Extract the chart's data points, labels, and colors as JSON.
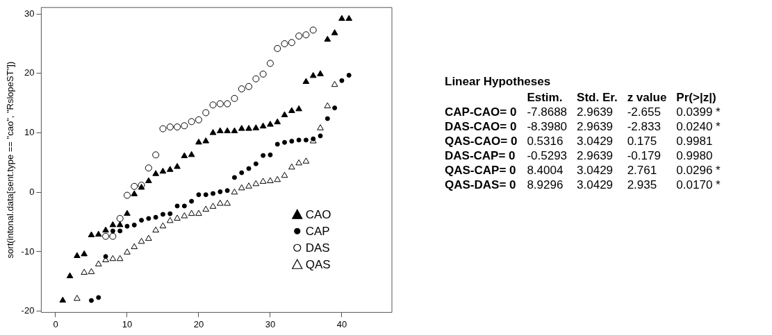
{
  "chart_data": [
    {
      "type": "scatter",
      "ylabel": "sort(intonal.data[sent.type == \"cao\", \"RslopeST\"])",
      "xlim": [
        -2,
        47
      ],
      "ylim": [
        -20.2,
        31.1
      ],
      "xticks": [
        0,
        10,
        20,
        30,
        40
      ],
      "yticks": [
        -20,
        -10,
        0,
        10,
        20,
        30
      ],
      "grid": false,
      "legend": "bottom right",
      "series": [
        {
          "name": "CAO",
          "color": "#000000",
          "marker": "triangle",
          "x": [
            1,
            2,
            3,
            4,
            5,
            6,
            7,
            8,
            9,
            10,
            11,
            12,
            13,
            14,
            15,
            16,
            17,
            18,
            19,
            20,
            21,
            22,
            23,
            24,
            25,
            26,
            27,
            28,
            29,
            30,
            31,
            32,
            33,
            34,
            35,
            36,
            37,
            38,
            39,
            40,
            41
          ],
          "values": [
            -18.2,
            -14.1,
            -10.7,
            -10.4,
            -7.2,
            -7.1,
            -6.4,
            -5.5,
            -5.5,
            -3.6,
            -0.3,
            0.8,
            1.9,
            3.1,
            3.5,
            3.8,
            4.3,
            6.1,
            6.3,
            8.4,
            8.6,
            10.0,
            10.3,
            10.3,
            10.3,
            10.7,
            10.7,
            10.8,
            11.1,
            11.4,
            11.8,
            13.0,
            13.7,
            14.0,
            18.6,
            19.6,
            19.9,
            25.7,
            26.8,
            29.2,
            29.2
          ]
        },
        {
          "name": "CAP",
          "color": "#000000",
          "marker": "circle",
          "x": [
            5,
            6,
            7,
            8,
            9,
            10,
            11,
            12,
            13,
            14,
            15,
            16,
            17,
            18,
            19,
            20,
            21,
            22,
            23,
            24,
            25,
            26,
            27,
            28,
            29,
            30,
            31,
            32,
            33,
            34,
            35,
            36,
            37,
            38,
            39,
            40,
            41
          ],
          "values": [
            -18.2,
            -17.7,
            -10.8,
            -6.5,
            -6.5,
            -5.7,
            -5.5,
            -4.7,
            -4.4,
            -4.2,
            -3.7,
            -3.6,
            -2.3,
            -2.3,
            -1.5,
            -0.4,
            -0.4,
            -0.2,
            0.1,
            0.3,
            2.5,
            3.3,
            4.0,
            4.8,
            6.2,
            6.3,
            8.1,
            8.4,
            8.6,
            8.8,
            8.8,
            9.0,
            9.5,
            12.4,
            14.2,
            18.8,
            19.7
          ]
        },
        {
          "name": "DAS",
          "color": "#ffffff",
          "marker": "circle",
          "x": [
            7,
            8,
            9,
            10,
            11,
            12,
            13,
            14,
            15,
            16,
            17,
            18,
            19,
            20,
            21,
            22,
            23,
            24,
            25,
            26,
            27,
            28,
            29,
            30,
            31,
            32,
            33,
            34,
            35,
            36
          ],
          "values": [
            -7.4,
            -7.4,
            -4.4,
            -0.5,
            1.0,
            1.2,
            4.1,
            6.3,
            10.7,
            11.0,
            11.0,
            11.2,
            11.9,
            12.2,
            13.4,
            14.7,
            14.9,
            14.9,
            15.8,
            17.4,
            17.8,
            19.1,
            19.9,
            21.7,
            24.2,
            25.0,
            25.2,
            26.3,
            26.5,
            27.3
          ]
        },
        {
          "name": "QAS",
          "color": "#ffffff",
          "marker": "triangle",
          "x": [
            3,
            4,
            5,
            6,
            7,
            8,
            9,
            10,
            11,
            12,
            13,
            14,
            15,
            16,
            17,
            18,
            19,
            20,
            21,
            22,
            23,
            24,
            25,
            26,
            27,
            28,
            29,
            30,
            31,
            32,
            33,
            34,
            35,
            36,
            37,
            38,
            39
          ],
          "values": [
            -17.9,
            -13.5,
            -13.4,
            -12.1,
            -11.4,
            -11.2,
            -11.2,
            -10.1,
            -9.2,
            -8.3,
            -7.8,
            -6.4,
            -5.7,
            -4.8,
            -4.4,
            -4.0,
            -3.6,
            -3.6,
            -2.9,
            -2.4,
            -1.9,
            -1.9,
            0.0,
            0.7,
            1.0,
            1.4,
            1.8,
            1.9,
            2.1,
            2.8,
            4.2,
            4.9,
            5.2,
            8.6,
            10.8,
            14.5,
            18.1
          ]
        }
      ]
    },
    {
      "type": "other",
      "title": "Linear Hypotheses",
      "annotations": [
        "Estim.",
        "Std. Er.",
        "z value",
        "Pr(>|z|)",
        "CAP-CAO= 0",
        "-7.8688",
        "2.9639",
        "-2.655",
        "0.0399 *",
        "DAS-CAO= 0",
        "-8.3980",
        "2.9639",
        "-2.833",
        "0.0240 *",
        "QAS-CAO= 0",
        "0.5316",
        "3.0429",
        "0.175",
        "0.9981",
        "DAS-CAP= 0",
        "-0.5293",
        "2.9639",
        "-0.179",
        "0.9980",
        "QAS-CAP= 0",
        "8.4004",
        "3.0429",
        "2.761",
        "0.0296 *",
        "QAS-DAS= 0",
        "8.9296",
        "3.0429",
        "2.935",
        "0.0170 *"
      ]
    }
  ]
}
